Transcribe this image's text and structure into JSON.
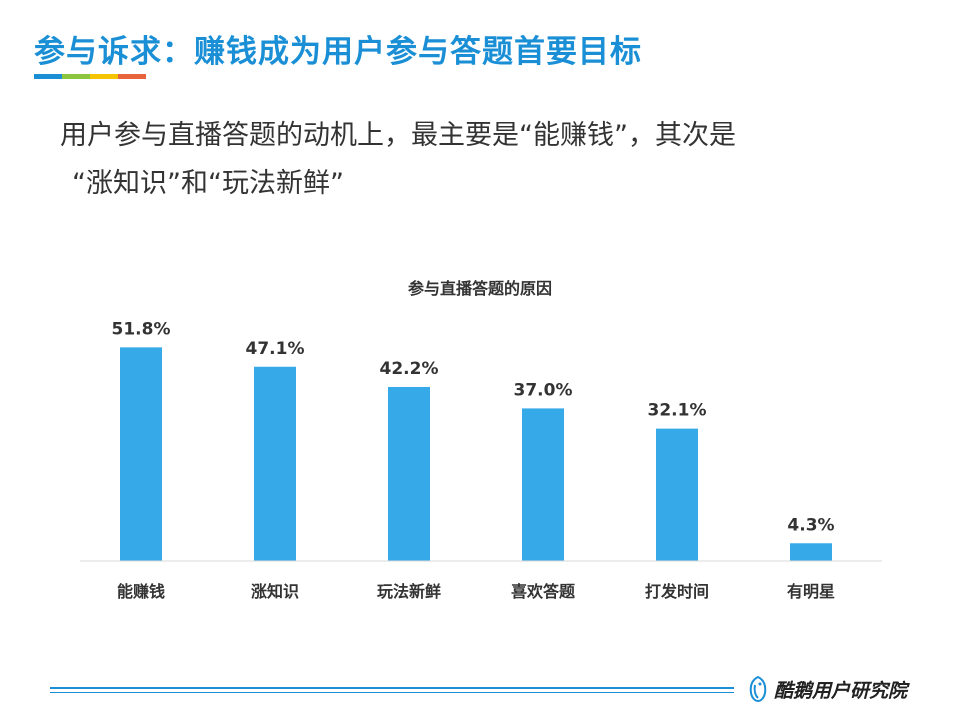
{
  "header": {
    "title": "参与诉求：赚钱成为用户参与答题首要目标",
    "underline_colors": [
      "#1a8fd6",
      "#8cc63f",
      "#f5c400",
      "#e8643c"
    ]
  },
  "lead": {
    "line1": "用户参与直播答题的动机上，最主要是“能赚钱”，其次是",
    "line2": "“涨知识”和“玩法新鲜”"
  },
  "chart_data": {
    "type": "bar",
    "title": "参与直播答题的原因",
    "categories": [
      "能赚钱",
      "涨知识",
      "玩法新鲜",
      "喜欢答题",
      "打发时间",
      "有明星"
    ],
    "values": [
      51.8,
      47.1,
      42.2,
      37.0,
      32.1,
      4.3
    ],
    "value_labels": [
      "51.8%",
      "47.1%",
      "42.2%",
      "37.0%",
      "32.1%",
      "4.3%"
    ],
    "xlabel": "",
    "ylabel": "",
    "ylim": [
      0,
      58
    ],
    "grid": false,
    "legend": "none",
    "bar_color": "#36a9e8"
  },
  "footer": {
    "brand_name": "酷鹅用户研究院",
    "brand_icon": "penguin-logo-icon",
    "rule_color": "#1a8fd6"
  }
}
